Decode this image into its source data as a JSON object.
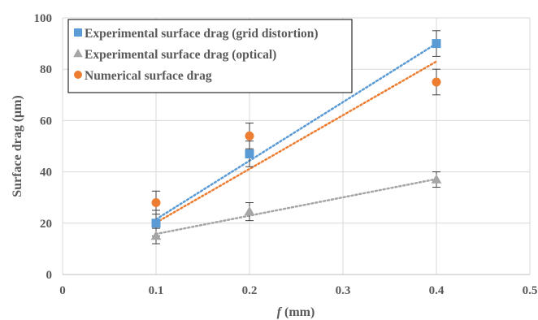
{
  "chart_data": {
    "type": "scatter",
    "x_axis": {
      "label_var": "f",
      "label_unit": " (mm)",
      "min": 0,
      "max": 0.5,
      "ticks": [
        0,
        0.1,
        0.2,
        0.3,
        0.4,
        0.5
      ],
      "tick_labels": [
        "0",
        "0.1",
        "0.2",
        "0.3",
        "0.4",
        "0.5"
      ]
    },
    "y_axis": {
      "label": "Surface drag (μm)",
      "min": 0,
      "max": 100,
      "ticks": [
        0,
        20,
        40,
        60,
        80,
        100
      ],
      "tick_labels": [
        "0",
        "20",
        "40",
        "60",
        "80",
        "100"
      ]
    },
    "grid": true,
    "legend_position": "top-left",
    "series": [
      {
        "name": "Experimental surface drag (grid distortion)",
        "marker": "square",
        "color": "#5b9bd5",
        "x": [
          0.1,
          0.2,
          0.4
        ],
        "y": [
          20,
          47,
          90
        ],
        "error": [
          5,
          5,
          5
        ],
        "trendline": {
          "x": [
            0.1,
            0.4
          ],
          "y": [
            21.5,
            90
          ]
        }
      },
      {
        "name": "Experimental surface drag (optical)",
        "marker": "triangle",
        "color": "#a5a5a5",
        "x": [
          0.1,
          0.2,
          0.4
        ],
        "y": [
          15,
          24.5,
          37
        ],
        "error": [
          3,
          3.5,
          3
        ],
        "trendline": {
          "x": [
            0.1,
            0.4
          ],
          "y": [
            15.8,
            37.2
          ]
        }
      },
      {
        "name": "Numerical surface drag",
        "marker": "circle",
        "color": "#ed7d31",
        "x": [
          0.1,
          0.2,
          0.4
        ],
        "y": [
          28,
          54,
          75
        ],
        "error": [
          4.5,
          5,
          5
        ],
        "trendline": {
          "x": [
            0.1,
            0.4
          ],
          "y": [
            20.2,
            83
          ]
        }
      }
    ]
  }
}
